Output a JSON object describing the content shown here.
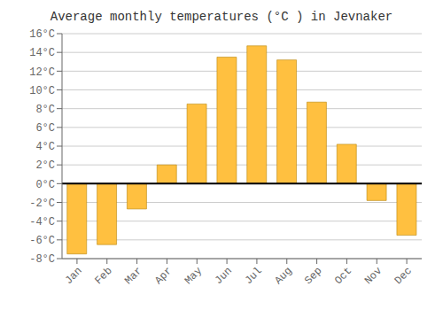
{
  "chart_data": {
    "type": "bar",
    "title": "Average monthly temperatures (°C ) in Jevnaker",
    "categories": [
      "Jan",
      "Feb",
      "Mar",
      "Apr",
      "May",
      "Jun",
      "Jul",
      "Aug",
      "Sep",
      "Oct",
      "Nov",
      "Dec"
    ],
    "values": [
      -7.5,
      -6.5,
      -2.7,
      2.0,
      8.5,
      13.5,
      14.7,
      13.2,
      8.7,
      4.2,
      -1.8,
      -5.5
    ],
    "color": "#FFC040",
    "ylim": [
      -8,
      16
    ],
    "yticks": [
      {
        "value": -8,
        "label": "-8°C"
      },
      {
        "value": -6,
        "label": "-6°C"
      },
      {
        "value": -4,
        "label": "-4°C"
      },
      {
        "value": -2,
        "label": "-2°C"
      },
      {
        "value": 0,
        "label": "0°C"
      },
      {
        "value": 2,
        "label": "2°C"
      },
      {
        "value": 4,
        "label": "4°C"
      },
      {
        "value": 6,
        "label": "6°C"
      },
      {
        "value": 8,
        "label": "8°C"
      },
      {
        "value": 10,
        "label": "10°C"
      },
      {
        "value": 12,
        "label": "12°C"
      },
      {
        "value": 14,
        "label": "14°C"
      },
      {
        "value": 16,
        "label": "16°C"
      }
    ],
    "grid": true
  }
}
